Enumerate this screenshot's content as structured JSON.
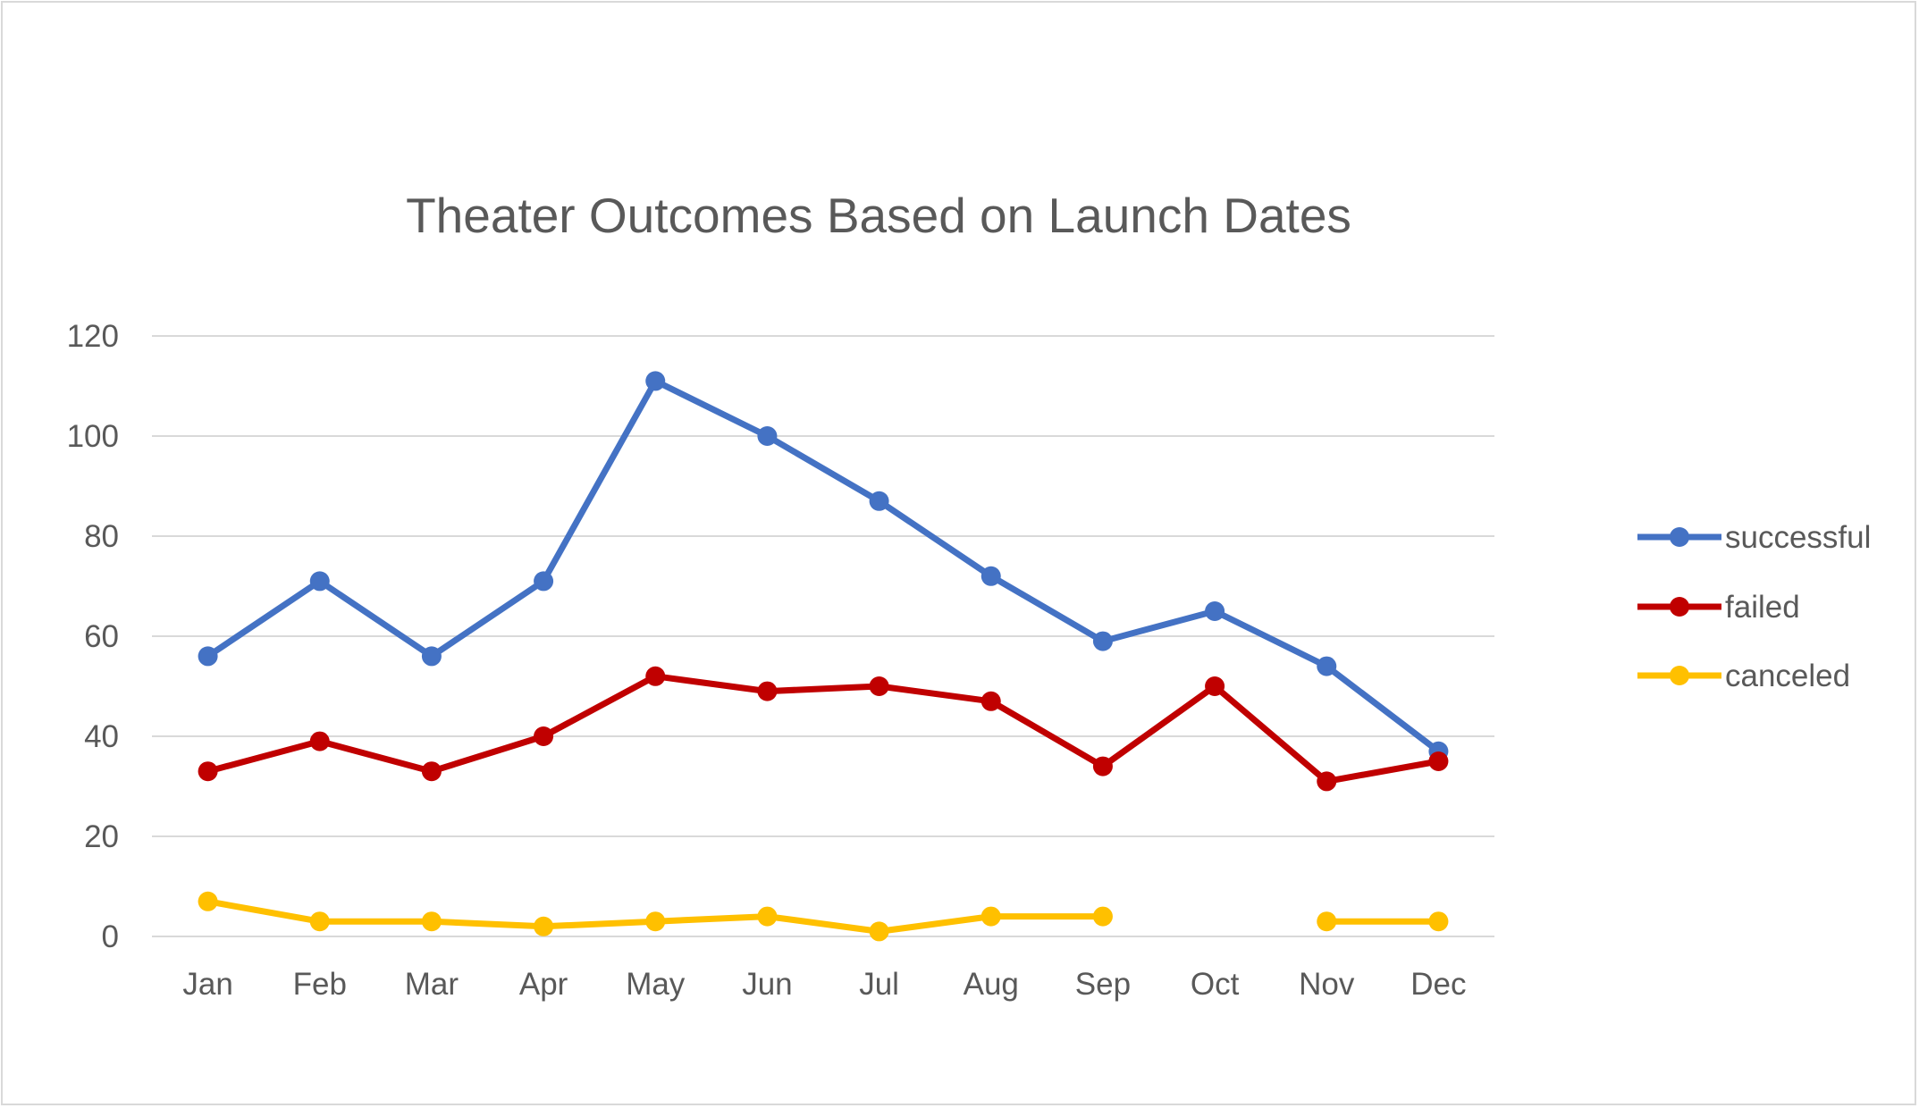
{
  "chart_data": {
    "type": "line",
    "title": "Theater Outcomes Based on Launch Dates",
    "xlabel": "",
    "ylabel": "",
    "categories": [
      "Jan",
      "Feb",
      "Mar",
      "Apr",
      "May",
      "Jun",
      "Jul",
      "Aug",
      "Sep",
      "Oct",
      "Nov",
      "Dec"
    ],
    "ylim": [
      0,
      120
    ],
    "yticks": [
      0,
      20,
      40,
      60,
      80,
      100,
      120
    ],
    "grid": true,
    "legend_position": "right",
    "series": [
      {
        "name": "successful",
        "color": "#4472C4",
        "values": [
          56,
          71,
          56,
          71,
          111,
          100,
          87,
          72,
          59,
          65,
          54,
          37
        ]
      },
      {
        "name": "failed",
        "color": "#C00000",
        "values": [
          33,
          39,
          33,
          40,
          52,
          49,
          50,
          47,
          34,
          50,
          31,
          35
        ]
      },
      {
        "name": "canceled",
        "color": "#FFC000",
        "values": [
          7,
          3,
          3,
          2,
          3,
          4,
          1,
          4,
          4,
          null,
          3,
          3
        ]
      }
    ]
  }
}
